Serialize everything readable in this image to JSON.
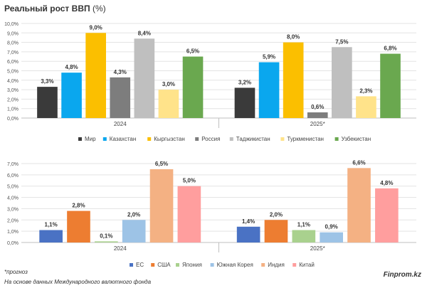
{
  "title": "Реальный рост ВВП",
  "title_unit": "(%)",
  "footnote": "*прогноз",
  "source": "На основе данных Международного валютного фонда",
  "brand": "Finprom.kz",
  "chart_data": [
    {
      "type": "bar",
      "title": "Реальный рост ВВП (%)",
      "categories": [
        "2024",
        "2025*"
      ],
      "ylim": [
        0,
        10
      ],
      "yticks": [
        0,
        1,
        2,
        3,
        4,
        5,
        6,
        7,
        8,
        9,
        10
      ],
      "grid": true,
      "legend_position": "bottom",
      "series": [
        {
          "name": "Мир",
          "color": "#3a3a3a",
          "values": [
            3.3,
            3.2
          ],
          "labels": [
            "3,3%",
            "3,2%"
          ]
        },
        {
          "name": "Казахстан",
          "color": "#0aa7ee",
          "values": [
            4.8,
            5.9
          ],
          "labels": [
            "4,8%",
            "5,9%"
          ]
        },
        {
          "name": "Кыргызстан",
          "color": "#fbbf00",
          "values": [
            9.0,
            8.0
          ],
          "labels": [
            "9,0%",
            "8,0%"
          ]
        },
        {
          "name": "Россия",
          "color": "#7d7d7d",
          "values": [
            4.3,
            0.6
          ],
          "labels": [
            "4,3%",
            "0,6%"
          ]
        },
        {
          "name": "Таджикистан",
          "color": "#bfbfbf",
          "values": [
            8.4,
            7.5
          ],
          "labels": [
            "8,4%",
            "7,5%"
          ]
        },
        {
          "name": "Туркменистан",
          "color": "#ffe38a",
          "values": [
            3.0,
            2.3
          ],
          "labels": [
            "3,0%",
            "2,3%"
          ]
        },
        {
          "name": "Узбекистан",
          "color": "#6aa84f",
          "values": [
            6.5,
            6.8
          ],
          "labels": [
            "6,5%",
            "6,8%"
          ]
        }
      ]
    },
    {
      "type": "bar",
      "categories": [
        "2024",
        "2025*"
      ],
      "ylim": [
        0,
        7
      ],
      "yticks": [
        0,
        1,
        2,
        3,
        4,
        5,
        6,
        7
      ],
      "grid": true,
      "legend_position": "bottom",
      "series": [
        {
          "name": "ЕС",
          "color": "#4a72c4",
          "values": [
            1.1,
            1.4
          ],
          "labels": [
            "1,1%",
            "1,4%"
          ]
        },
        {
          "name": "США",
          "color": "#ed7d31",
          "values": [
            2.8,
            2.0
          ],
          "labels": [
            "2,8%",
            "2,0%"
          ]
        },
        {
          "name": "Япония",
          "color": "#a9d18e",
          "values": [
            0.1,
            1.1
          ],
          "labels": [
            "0,1%",
            "1,1%"
          ]
        },
        {
          "name": "Южная Корея",
          "color": "#9dc3e6",
          "values": [
            2.0,
            0.9
          ],
          "labels": [
            "2,0%",
            "0,9%"
          ]
        },
        {
          "name": "Индия",
          "color": "#f4b183",
          "values": [
            6.5,
            6.6
          ],
          "labels": [
            "6,5%",
            "6,6%"
          ]
        },
        {
          "name": "Китай",
          "color": "#ff9e9e",
          "values": [
            5.0,
            4.8
          ],
          "labels": [
            "5,0%",
            "4,8%"
          ]
        }
      ]
    }
  ]
}
